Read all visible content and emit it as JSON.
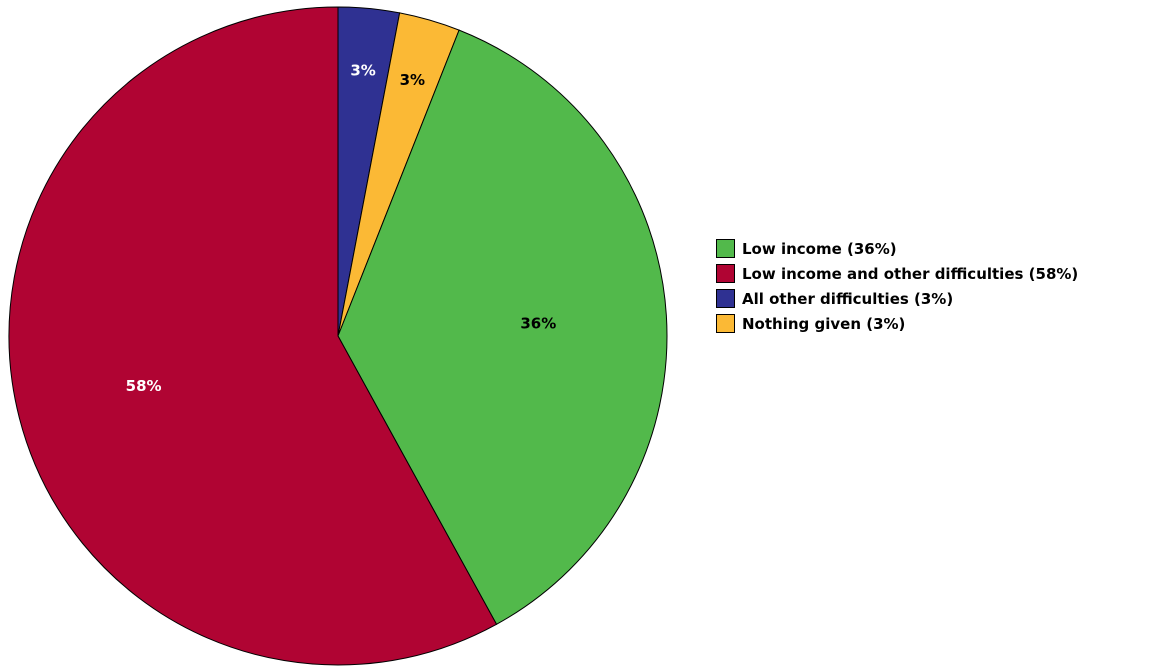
{
  "chart_data": {
    "type": "pie",
    "slices": [
      {
        "label": "3%",
        "value": 3,
        "color": "#2f3192",
        "label_color": "#ffffff"
      },
      {
        "label": "3%",
        "value": 3,
        "color": "#fbb935",
        "label_color": "#000000"
      },
      {
        "label": "36%",
        "value": 36,
        "color": "#52b94b",
        "label_color": "#000000"
      },
      {
        "label": "58%",
        "value": 58,
        "color": "#b00433",
        "label_color": "#ffffff"
      }
    ],
    "legend": {
      "placement": "right",
      "entries": [
        {
          "label": "Low income (36%)",
          "color": "#52b94b"
        },
        {
          "label": "Low income and other difficulties (58%)",
          "color": "#b00433"
        },
        {
          "label": "All other difficulties (3%)",
          "color": "#2f3192"
        },
        {
          "label": "Nothing given (3%)",
          "color": "#fbb935"
        }
      ]
    }
  }
}
